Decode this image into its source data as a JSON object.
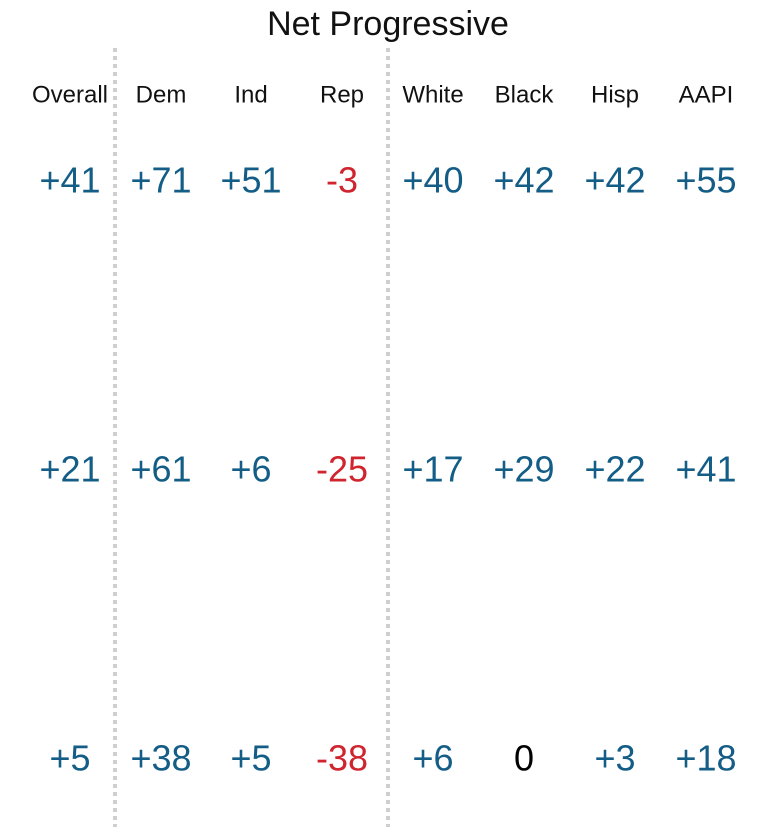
{
  "title": "Net Progressive",
  "table": {
    "columns": [
      "Overall",
      "Dem",
      "Ind",
      "Rep",
      "White",
      "Black",
      "Hisp",
      "AAPI"
    ],
    "rows": [
      [
        "+41",
        "+71",
        "+51",
        "-3",
        "+40",
        "+42",
        "+42",
        "+55"
      ],
      [
        "+21",
        "+61",
        "+6",
        "-25",
        "+17",
        "+29",
        "+22",
        "+41"
      ],
      [
        "+5",
        "+38",
        "+5",
        "-38",
        "+6",
        "0",
        "+3",
        "+18"
      ]
    ]
  },
  "colors": {
    "positive": "#135d86",
    "negative": "#d0252f",
    "zero": "#000000"
  }
}
